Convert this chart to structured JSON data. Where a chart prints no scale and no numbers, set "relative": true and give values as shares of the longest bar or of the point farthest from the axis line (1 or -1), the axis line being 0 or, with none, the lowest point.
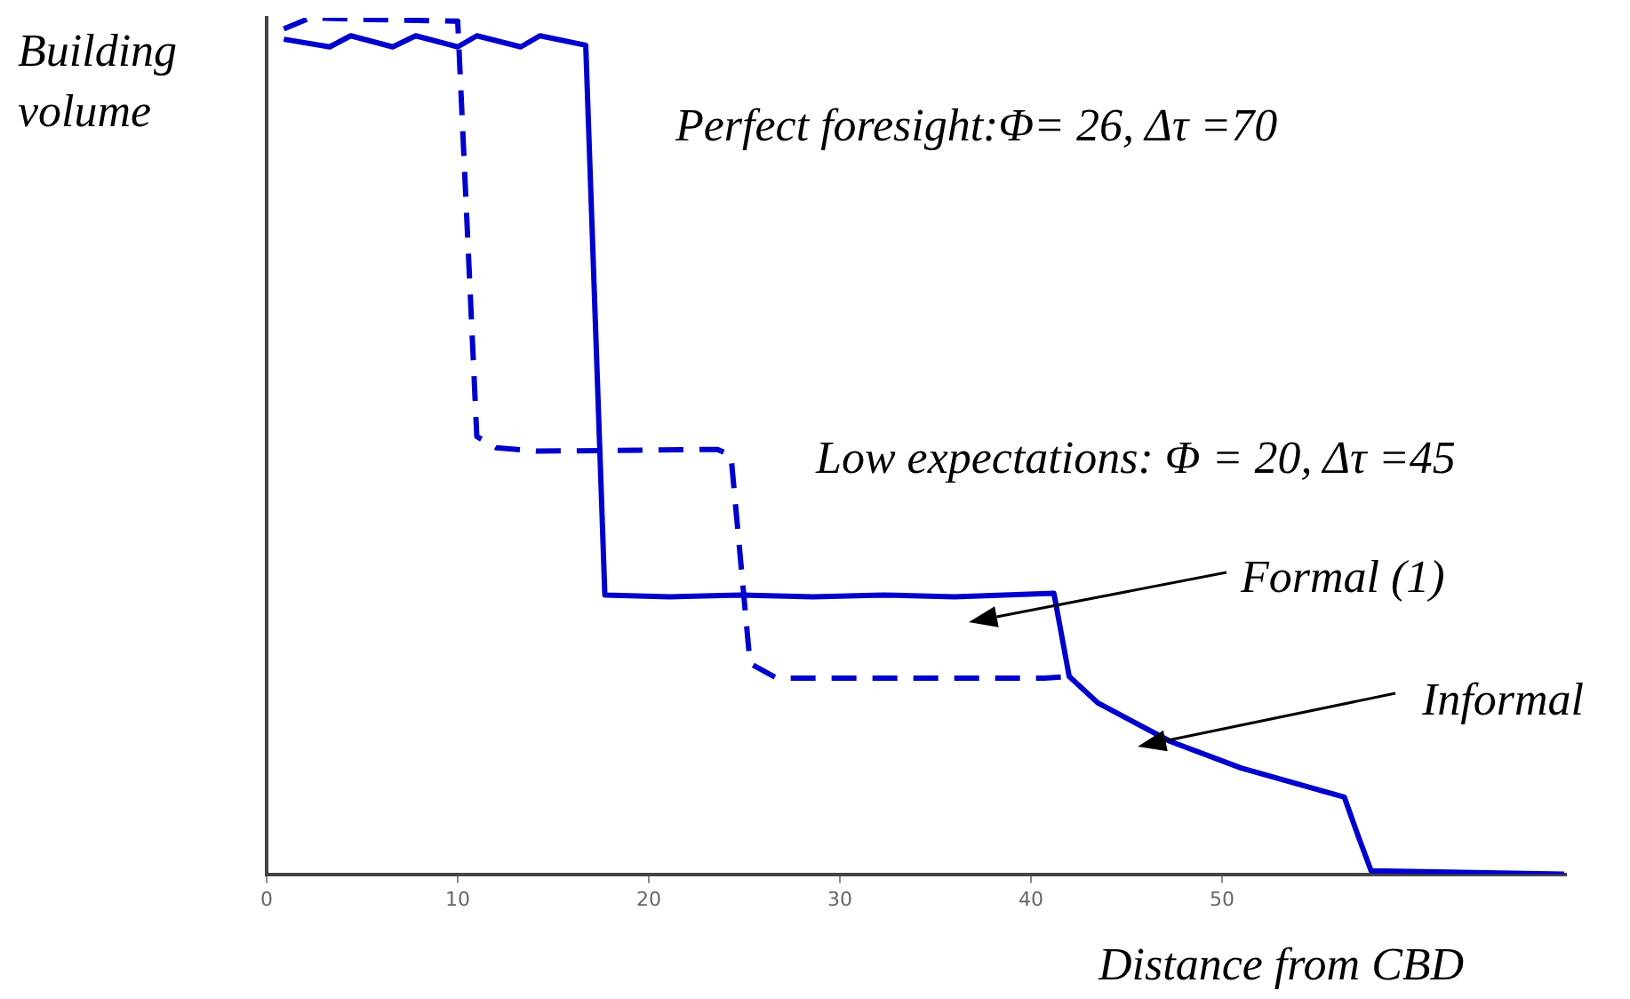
{
  "chart_data": {
    "type": "line",
    "relative": true,
    "xlabel": "Distance from CBD",
    "ylabel": "Building volume",
    "xlim": [
      0,
      68
    ],
    "xticks": [
      0,
      10,
      20,
      30,
      40,
      50
    ],
    "grid": false,
    "legend": false,
    "marker": "none",
    "series": [
      {
        "color": "#0000cc",
        "line_style": "solid",
        "x": [
          0.9,
          3.3,
          4.4,
          6.6,
          7.8,
          10.0,
          11.0,
          13.3,
          14.3,
          16.7,
          17.7,
          21.1,
          24.8,
          28.6,
          32.3,
          36.0,
          41.2,
          42.0,
          43.5,
          47.3,
          51.0,
          56.4,
          57.1,
          57.8,
          67.9
        ],
        "values": [
          0.975,
          0.966,
          0.979,
          0.966,
          0.979,
          0.966,
          0.979,
          0.966,
          0.979,
          0.968,
          0.326,
          0.324,
          0.326,
          0.324,
          0.326,
          0.324,
          0.328,
          0.231,
          0.2,
          0.155,
          0.124,
          0.09,
          0.046,
          0.004,
          0
        ]
      },
      {
        "color": "#0000cc",
        "line_style": "dashed",
        "x": [
          0.9,
          2.3,
          5.4,
          10.0,
          11.0,
          12.0,
          14.2,
          23.6,
          24.3,
          25.3,
          26.7,
          40.7,
          42.0
        ],
        "values": [
          0.987,
          1,
          0.998,
          0.996,
          0.511,
          0.498,
          0.494,
          0.496,
          0.489,
          0.246,
          0.229,
          0.229,
          0.231
        ]
      }
    ],
    "annotations": [
      "Perfect foresight:Φ= 26, Δτ =70",
      "Low expectations: Φ = 20, Δτ =45",
      "Formal (1)",
      "Informal"
    ]
  }
}
